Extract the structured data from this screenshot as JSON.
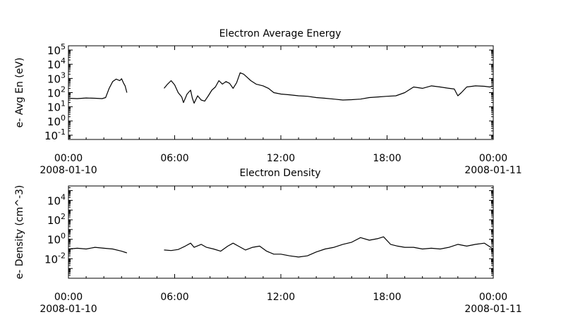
{
  "chart_data": [
    {
      "type": "line",
      "title": "Electron Average Energy",
      "ylabel": "e- Avg En (eV)",
      "yscale": "log",
      "ylim": [
        0.05,
        200000
      ],
      "xlim_hours": [
        0,
        24
      ],
      "x_ticks": [
        {
          "time": "00:00",
          "date": "2008-01-10"
        },
        {
          "time": "06:00",
          "date": ""
        },
        {
          "time": "12:00",
          "date": ""
        },
        {
          "time": "18:00",
          "date": ""
        },
        {
          "time": "00:00",
          "date": "2008-01-11"
        }
      ],
      "y_ticks": [
        {
          "base": "10",
          "exp": "-1",
          "value": 0.1
        },
        {
          "base": "10",
          "exp": "0",
          "value": 1
        },
        {
          "base": "10",
          "exp": "1",
          "value": 10
        },
        {
          "base": "10",
          "exp": "2",
          "value": 100
        },
        {
          "base": "10",
          "exp": "3",
          "value": 1000
        },
        {
          "base": "10",
          "exp": "4",
          "value": 10000
        },
        {
          "base": "10",
          "exp": "5",
          "value": 100000
        }
      ],
      "series": [
        {
          "segments": [
            [
              [
                0,
                40
              ],
              [
                0.5,
                38
              ],
              [
                1,
                42
              ],
              [
                1.5,
                40
              ],
              [
                1.9,
                38
              ],
              [
                2.1,
                45
              ],
              [
                2.3,
                200
              ],
              [
                2.5,
                600
              ],
              [
                2.7,
                900
              ],
              [
                2.9,
                700
              ],
              [
                3.0,
                950
              ],
              [
                3.1,
                500
              ],
              [
                3.2,
                300
              ],
              [
                3.3,
                100
              ]
            ],
            [
              [
                5.4,
                200
              ],
              [
                5.6,
                400
              ],
              [
                5.8,
                700
              ],
              [
                6.0,
                350
              ],
              [
                6.2,
                100
              ],
              [
                6.4,
                50
              ],
              [
                6.5,
                20
              ],
              [
                6.7,
                80
              ],
              [
                6.9,
                150
              ],
              [
                7.0,
                40
              ],
              [
                7.1,
                18
              ],
              [
                7.3,
                60
              ],
              [
                7.5,
                30
              ],
              [
                7.7,
                25
              ],
              [
                7.9,
                60
              ],
              [
                8.1,
                150
              ],
              [
                8.3,
                250
              ],
              [
                8.5,
                700
              ],
              [
                8.7,
                400
              ],
              [
                8.9,
                600
              ],
              [
                9.1,
                450
              ],
              [
                9.3,
                200
              ],
              [
                9.5,
                500
              ],
              [
                9.7,
                2500
              ],
              [
                9.9,
                2000
              ],
              [
                10.1,
                1200
              ],
              [
                10.3,
                700
              ],
              [
                10.6,
                400
              ],
              [
                11.0,
                300
              ],
              [
                11.3,
                200
              ],
              [
                11.6,
                100
              ],
              [
                12.0,
                80
              ],
              [
                12.5,
                70
              ],
              [
                13.0,
                60
              ],
              [
                13.5,
                55
              ],
              [
                14.0,
                45
              ],
              [
                14.5,
                40
              ],
              [
                15.0,
                35
              ],
              [
                15.5,
                30
              ],
              [
                16.0,
                32
              ],
              [
                16.5,
                35
              ],
              [
                17.0,
                45
              ],
              [
                17.5,
                50
              ],
              [
                18.0,
                55
              ],
              [
                18.5,
                60
              ],
              [
                19.0,
                100
              ],
              [
                19.5,
                250
              ],
              [
                20.0,
                200
              ],
              [
                20.5,
                300
              ],
              [
                21.0,
                250
              ],
              [
                21.5,
                200
              ],
              [
                21.8,
                180
              ],
              [
                22.0,
                60
              ],
              [
                22.2,
                100
              ],
              [
                22.5,
                250
              ],
              [
                23.0,
                300
              ],
              [
                23.5,
                280
              ],
              [
                23.8,
                250
              ],
              [
                24.0,
                300
              ]
            ]
          ]
        }
      ]
    },
    {
      "type": "line",
      "title": "Electron Density",
      "ylabel": "e- Density (cm^-3)",
      "yscale": "log",
      "ylim": [
        0.0001,
        300000
      ],
      "xlim_hours": [
        0,
        24
      ],
      "x_ticks": [
        {
          "time": "00:00",
          "date": "2008-01-10"
        },
        {
          "time": "06:00",
          "date": ""
        },
        {
          "time": "12:00",
          "date": ""
        },
        {
          "time": "18:00",
          "date": ""
        },
        {
          "time": "00:00",
          "date": "2008-01-11"
        }
      ],
      "y_ticks": [
        {
          "base": "10",
          "exp": "-2",
          "value": 0.01
        },
        {
          "base": "10",
          "exp": "0",
          "value": 1
        },
        {
          "base": "10",
          "exp": "2",
          "value": 100
        },
        {
          "base": "10",
          "exp": "4",
          "value": 10000
        }
      ],
      "series": [
        {
          "segments": [
            [
              [
                0,
                0.1
              ],
              [
                0.5,
                0.12
              ],
              [
                1,
                0.1
              ],
              [
                1.5,
                0.15
              ],
              [
                2,
                0.12
              ],
              [
                2.5,
                0.1
              ],
              [
                3,
                0.06
              ],
              [
                3.3,
                0.04
              ]
            ],
            [
              [
                5.4,
                0.08
              ],
              [
                5.8,
                0.07
              ],
              [
                6.2,
                0.09
              ],
              [
                6.6,
                0.2
              ],
              [
                6.9,
                0.4
              ],
              [
                7.1,
                0.15
              ],
              [
                7.5,
                0.3
              ],
              [
                7.8,
                0.15
              ],
              [
                8.2,
                0.1
              ],
              [
                8.6,
                0.06
              ],
              [
                9.0,
                0.2
              ],
              [
                9.3,
                0.4
              ],
              [
                9.6,
                0.2
              ],
              [
                10.0,
                0.08
              ],
              [
                10.4,
                0.15
              ],
              [
                10.8,
                0.2
              ],
              [
                11.2,
                0.06
              ],
              [
                11.6,
                0.03
              ],
              [
                12.0,
                0.03
              ],
              [
                12.5,
                0.02
              ],
              [
                13.0,
                0.015
              ],
              [
                13.5,
                0.02
              ],
              [
                14.0,
                0.05
              ],
              [
                14.5,
                0.1
              ],
              [
                15.0,
                0.15
              ],
              [
                15.5,
                0.3
              ],
              [
                16.0,
                0.5
              ],
              [
                16.5,
                1.5
              ],
              [
                17.0,
                0.8
              ],
              [
                17.5,
                1.2
              ],
              [
                17.8,
                1.8
              ],
              [
                18.2,
                0.3
              ],
              [
                18.6,
                0.2
              ],
              [
                19.0,
                0.15
              ],
              [
                19.5,
                0.15
              ],
              [
                20.0,
                0.1
              ],
              [
                20.5,
                0.12
              ],
              [
                21.0,
                0.1
              ],
              [
                21.5,
                0.15
              ],
              [
                22.0,
                0.3
              ],
              [
                22.5,
                0.2
              ],
              [
                23.0,
                0.3
              ],
              [
                23.5,
                0.4
              ],
              [
                24.0,
                0.1
              ]
            ]
          ]
        }
      ]
    }
  ]
}
